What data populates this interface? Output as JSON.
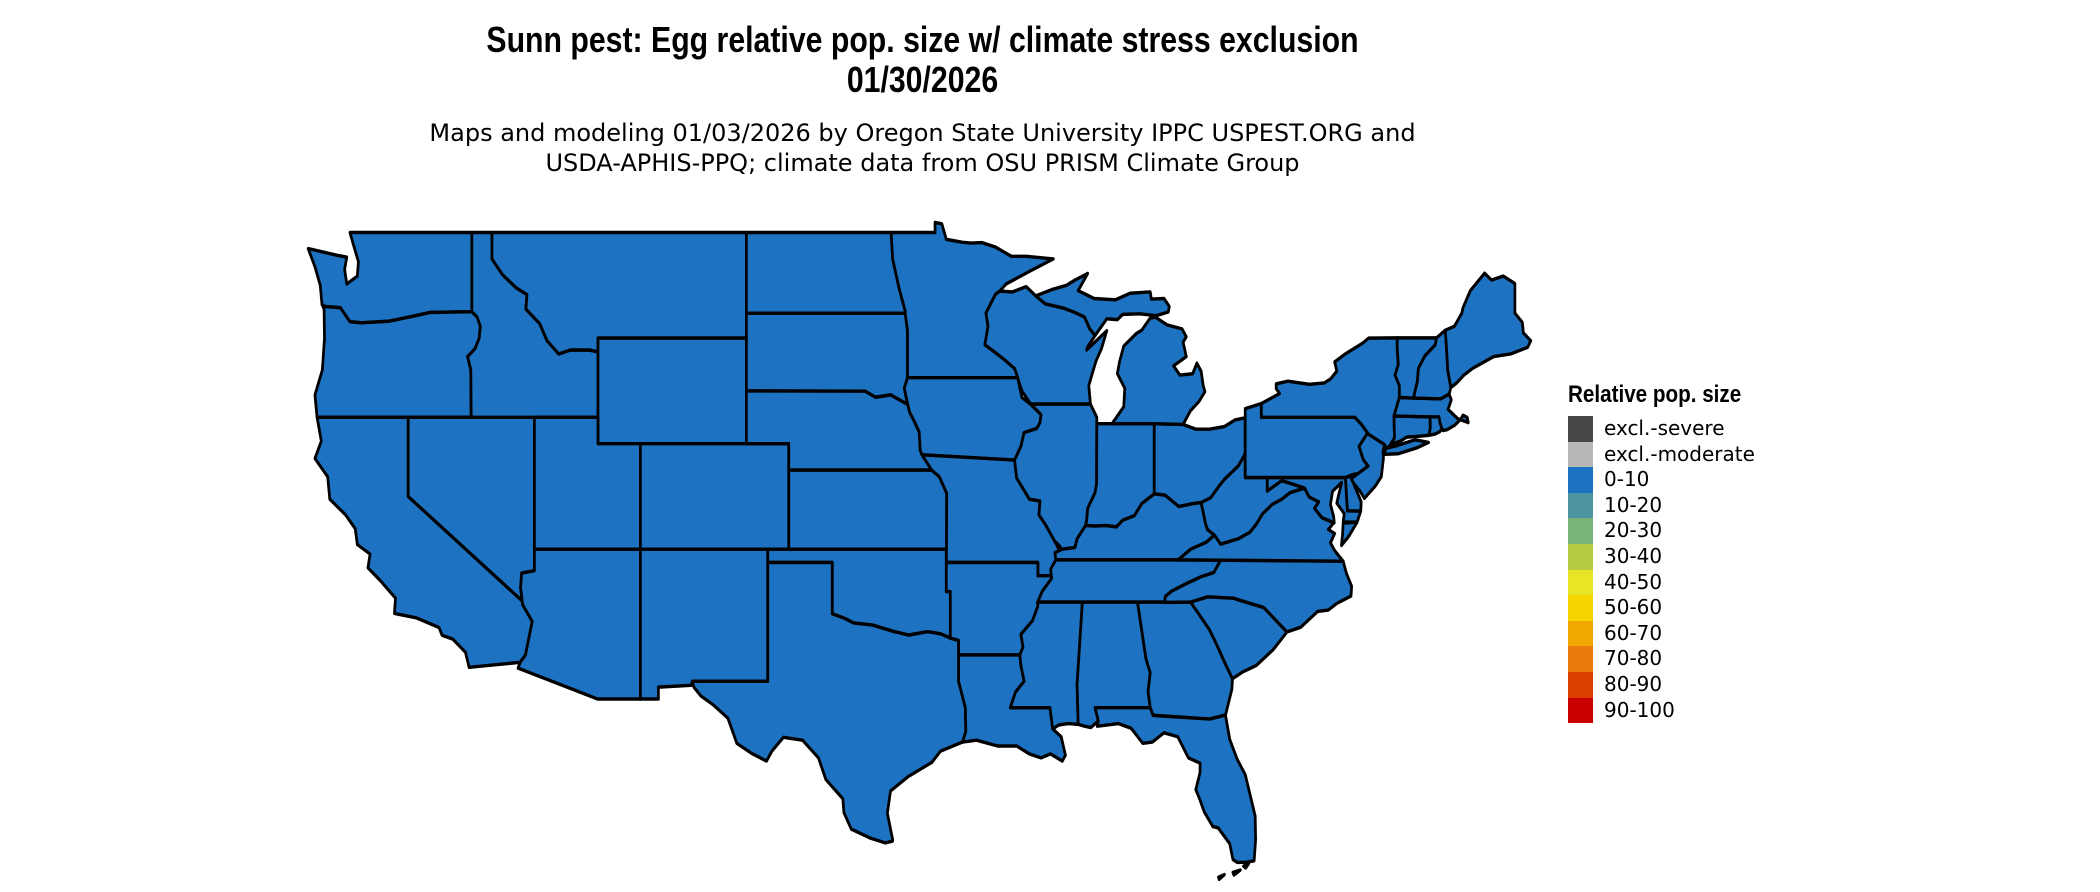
{
  "header": {
    "title_line1": "Sunn pest: Egg relative pop. size w/ climate stress exclusion",
    "title_line2": "01/30/2026",
    "subtitle_line1": "Maps and modeling 01/03/2026 by Oregon State University IPPC USPEST.ORG and",
    "subtitle_line2": "USDA-APHIS-PPQ; climate data from OSU PRISM Climate Group"
  },
  "legend": {
    "title": "Relative pop. size",
    "items": [
      {
        "label": "excl.-severe",
        "color": "#474747"
      },
      {
        "label": "excl.-moderate",
        "color": "#b8b8b8"
      },
      {
        "label": "0-10",
        "color": "#1d73c2"
      },
      {
        "label": "10-20",
        "color": "#4e93a2"
      },
      {
        "label": "20-30",
        "color": "#7ab377"
      },
      {
        "label": "30-40",
        "color": "#b4cc44"
      },
      {
        "label": "40-50",
        "color": "#e8e426"
      },
      {
        "label": "50-60",
        "color": "#f7d500"
      },
      {
        "label": "60-70",
        "color": "#f0a800"
      },
      {
        "label": "70-80",
        "color": "#e87b0c"
      },
      {
        "label": "80-90",
        "color": "#d94000"
      },
      {
        "label": "90-100",
        "color": "#c80000"
      }
    ]
  },
  "map": {
    "region_shown": "Contiguous United States",
    "all_states_category": "0-10",
    "colors": {
      "state_fill": "#1d73c2",
      "state_border": "#000000",
      "background": "#ffffff"
    }
  }
}
